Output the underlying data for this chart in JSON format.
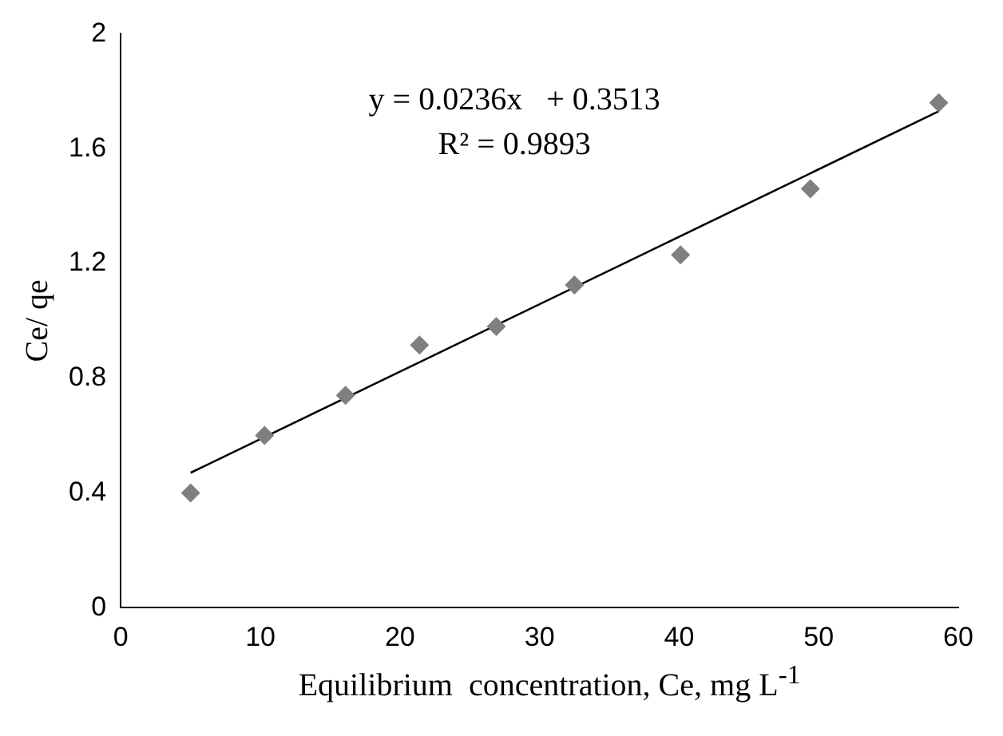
{
  "chart_data": {
    "type": "scatter",
    "xlabel": "Equilibrium  concentration, Ce, mg L$^{-1}$",
    "ylabel": "Ce/ qe",
    "annotations": [
      "y = 0.0236x   + 0.3513",
      "R² = 0.9893"
    ],
    "xlim": [
      0,
      60
    ],
    "xticks": [
      0,
      10,
      20,
      30,
      40,
      50,
      60
    ],
    "ylim": [
      0,
      2
    ],
    "yticks": [
      0,
      0.4,
      0.8,
      1.2,
      1.6,
      2
    ],
    "grid": false,
    "legend": false,
    "marker": "diamond",
    "series": [
      {
        "type": "scatter",
        "color": "#7f7f7f",
        "x": [
          5,
          10.3,
          16.1,
          21.4,
          26.9,
          32.5,
          40.1,
          49.4,
          58.6
        ],
        "values": [
          0.4,
          0.6,
          0.74,
          0.915,
          0.98,
          1.125,
          1.23,
          1.46,
          1.76
        ]
      },
      {
        "type": "line",
        "color": "#000000",
        "x": [
          5,
          58.6
        ],
        "values": [
          0.47,
          1.73
        ],
        "marker": "none",
        "line_style": "solid"
      }
    ]
  }
}
